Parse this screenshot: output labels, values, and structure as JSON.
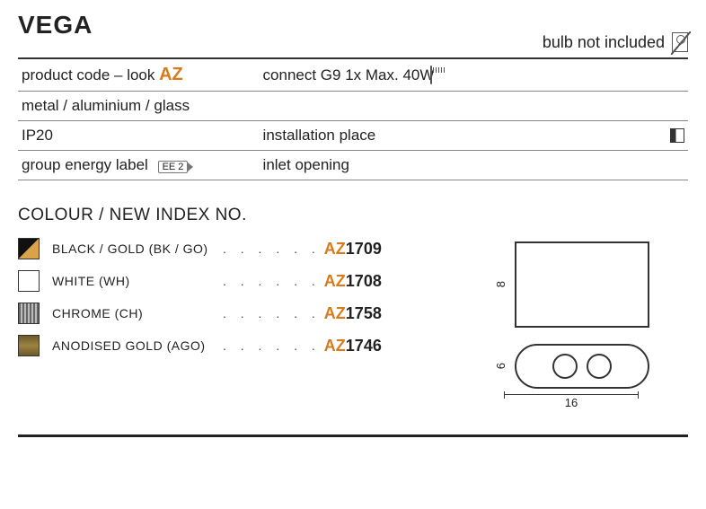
{
  "title": "VEGA",
  "topnote": "bulb not included",
  "spec": {
    "row1_left_a": "product code – look ",
    "row1_left_b": "AZ",
    "row1_right": "connect G9 1x Max. 40W",
    "row2_left": "metal / aluminium / glass",
    "row3_left": "IP20",
    "row3_right": "installation place",
    "row4_left": "group energy label",
    "row4_badge": "EE 2",
    "row4_right": "inlet opening"
  },
  "section_title": "COLOUR / NEW INDEX NO.",
  "colours": [
    {
      "swatch": "sw-bkg",
      "label": "BLACK / GOLD (BK / GO)",
      "prefix": "AZ",
      "num": "1709"
    },
    {
      "swatch": "sw-wh",
      "label": "WHITE (WH)",
      "prefix": "AZ",
      "num": "1708"
    },
    {
      "swatch": "sw-ch",
      "label": "CHROME (CH)",
      "prefix": "AZ",
      "num": "1758"
    },
    {
      "swatch": "sw-ago",
      "label": "ANODISED GOLD (AGO)",
      "prefix": "AZ",
      "num": "1746"
    }
  ],
  "dims": {
    "height": "8",
    "depth": "6",
    "width": "16"
  },
  "dots": ". . . . . .",
  "colors": {
    "accent": "#d97a1a"
  }
}
